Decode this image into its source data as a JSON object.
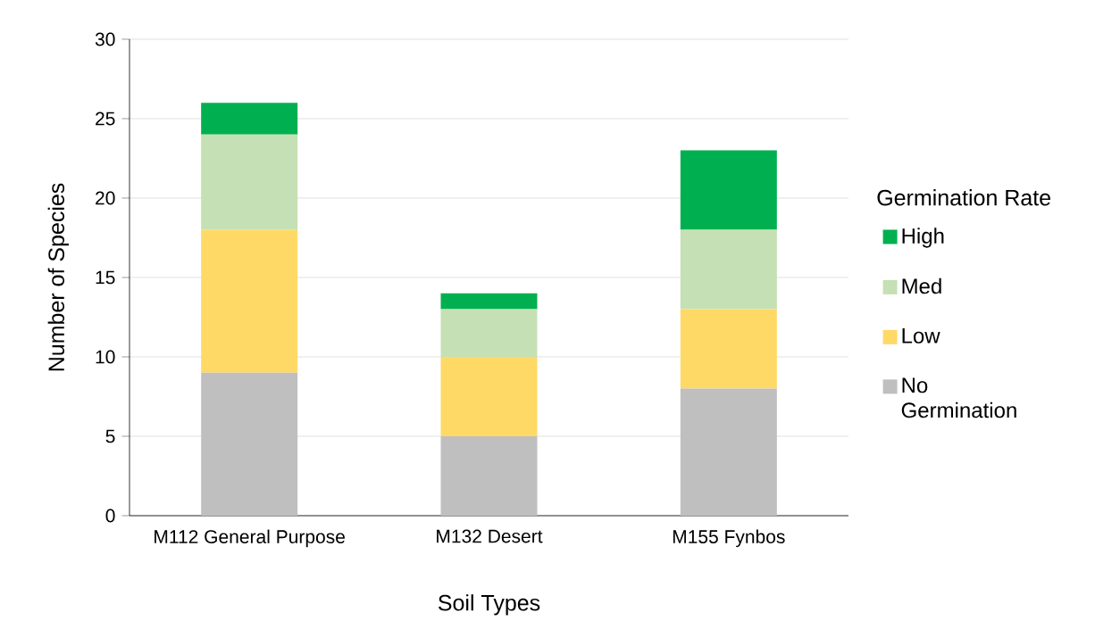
{
  "chart_data": {
    "type": "bar",
    "stacked": true,
    "xlabel": "Soil Types",
    "ylabel": "Number of Species",
    "legend_title": "Germination Rate",
    "categories": [
      "M112 General Purpose",
      "M132 Desert",
      "M155 Fynbos"
    ],
    "series": [
      {
        "name": "No Germination",
        "color": "#bfbfbf",
        "values": [
          9,
          5,
          8
        ]
      },
      {
        "name": "Low",
        "color": "#ffd966",
        "values": [
          9,
          5,
          5
        ]
      },
      {
        "name": "Med",
        "color": "#c5e0b4",
        "values": [
          6,
          3,
          5
        ]
      },
      {
        "name": "High",
        "color": "#00b050",
        "values": [
          2,
          1,
          5
        ]
      }
    ],
    "ylim": [
      0,
      30
    ],
    "yticks": [
      0,
      5,
      10,
      15,
      20,
      25,
      30
    ],
    "grid": "y",
    "legend": "right"
  }
}
